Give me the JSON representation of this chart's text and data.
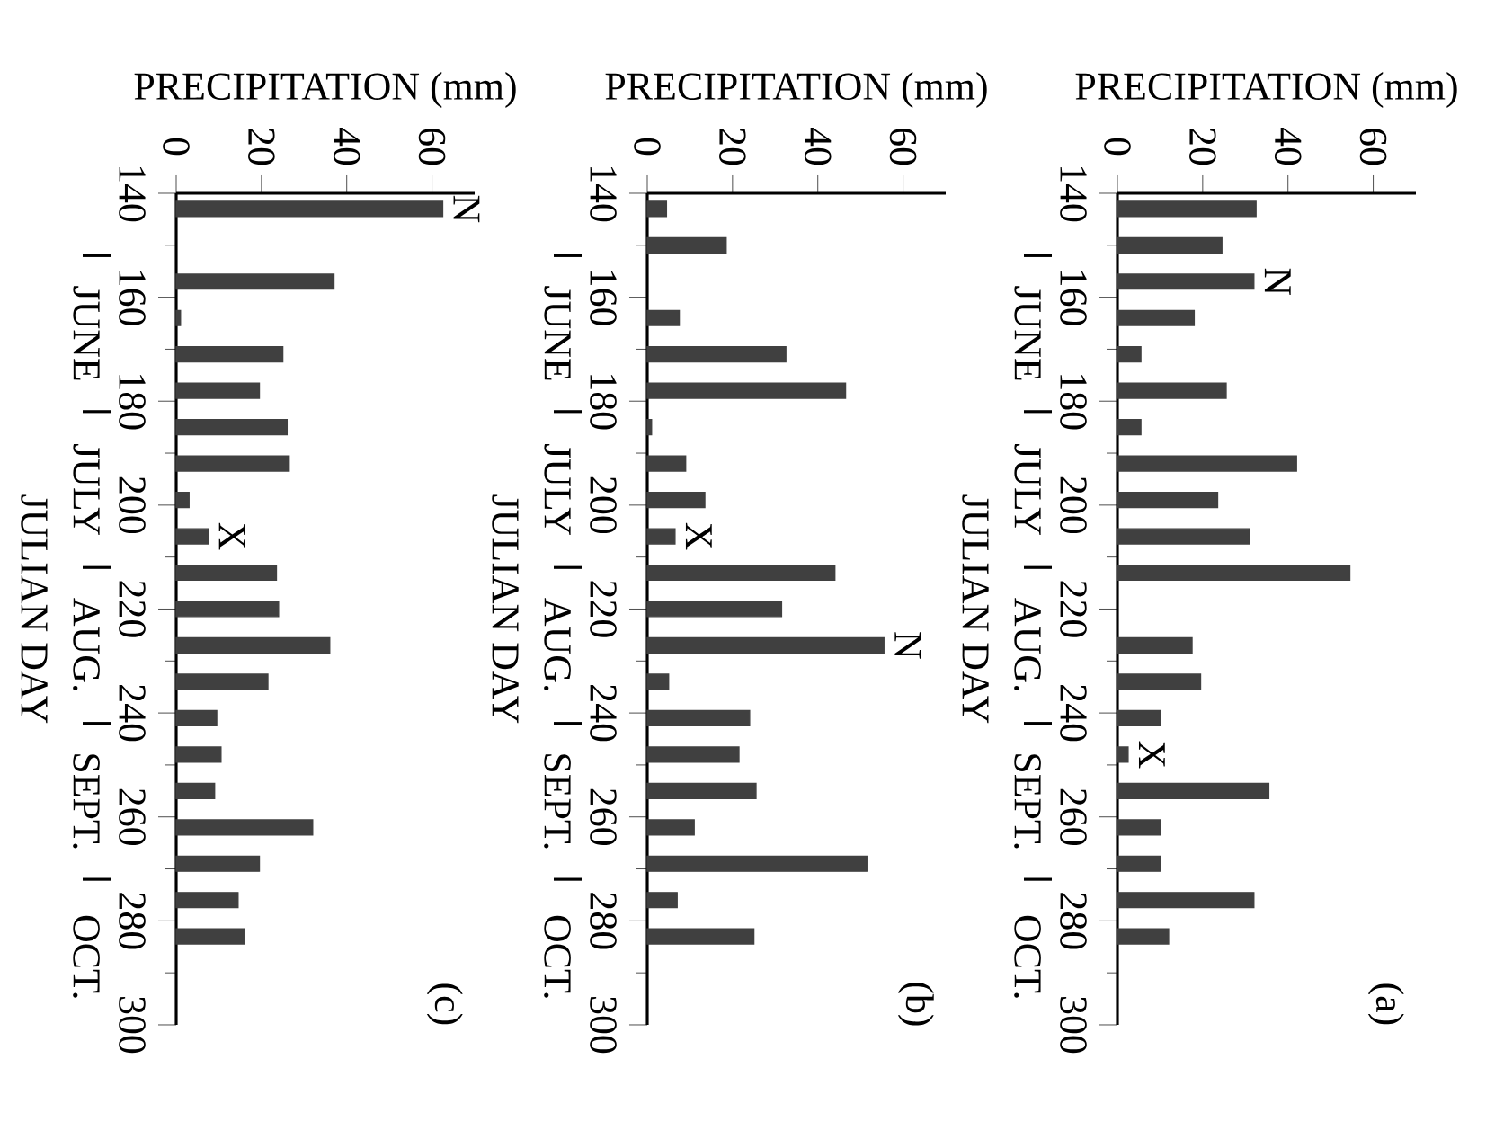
{
  "chart_data": [
    {
      "type": "bar",
      "orientation": "horizontal",
      "xlabel": "PRECIPITATION (mm)",
      "ylabel": "JULIAN DAY",
      "color": "#404040",
      "x": [
        143,
        150,
        157,
        164,
        171,
        178,
        185,
        192,
        199,
        206,
        213,
        227,
        234,
        241,
        248,
        255,
        262,
        269,
        276,
        283
      ],
      "values": [
        32.5,
        24.5,
        32,
        18,
        5.5,
        25.5,
        5.5,
        42,
        23.5,
        31,
        54.5,
        17.5,
        19.5,
        10,
        2.5,
        35.5,
        10,
        10,
        32,
        12
      ],
      "xlim": [
        0,
        70
      ],
      "ylim": [
        300,
        140
      ],
      "xticks": [
        0,
        20,
        40,
        60
      ],
      "yticks": [
        140,
        {
          "value": 150,
          "label": null
        },
        160,
        {
          "value": 170,
          "label": null
        },
        180,
        {
          "value": 190,
          "label": null
        },
        200,
        {
          "value": 210,
          "label": null
        },
        220,
        {
          "value": 230,
          "label": null
        },
        240,
        {
          "value": 250,
          "label": null
        },
        260,
        {
          "value": 270,
          "label": null
        },
        280,
        {
          "value": 290,
          "label": null
        },
        300
      ],
      "annotations": [
        {
          "text": "N",
          "x": 32,
          "y": 157
        },
        {
          "text": "X",
          "x": 2.5,
          "y": 248
        },
        "(a)",
        "JUNE",
        "JULY",
        "AUG.",
        "SEPT.",
        "OCT."
      ]
    },
    {
      "type": "bar",
      "orientation": "horizontal",
      "xlabel": "PRECIPITATION (mm)",
      "ylabel": "JULIAN DAY",
      "color": "#404040",
      "x": [
        143,
        150,
        164,
        171,
        178,
        185,
        192,
        199,
        206,
        213,
        220,
        227,
        234,
        241,
        248,
        255,
        262,
        269,
        276,
        283
      ],
      "values": [
        4.5,
        18.5,
        7.5,
        32.5,
        46.5,
        1,
        9,
        13.5,
        6.5,
        44,
        31.5,
        55.5,
        5,
        24,
        21.5,
        25.5,
        11,
        51.5,
        7,
        25
      ],
      "xlim": [
        0,
        70
      ],
      "ylim": [
        300,
        140
      ],
      "xticks": [
        0,
        20,
        40,
        60
      ],
      "yticks": [
        140,
        {
          "value": 150,
          "label": null
        },
        160,
        {
          "value": 170,
          "label": null
        },
        180,
        {
          "value": 190,
          "label": null
        },
        200,
        {
          "value": 210,
          "label": null
        },
        220,
        {
          "value": 230,
          "label": null
        },
        240,
        {
          "value": 250,
          "label": null
        },
        260,
        {
          "value": 270,
          "label": null
        },
        280,
        {
          "value": 290,
          "label": null
        },
        300
      ],
      "annotations": [
        {
          "text": "X",
          "x": 6.5,
          "y": 206
        },
        {
          "text": "N",
          "x": 55.5,
          "y": 227
        },
        "(b)",
        "JUNE",
        "JULY",
        "AUG.",
        "SEPT.",
        "OCT."
      ]
    },
    {
      "type": "bar",
      "orientation": "horizontal",
      "xlabel": "PRECIPITATION (mm)",
      "ylabel": "JULIAN DAY",
      "color": "#404040",
      "x": [
        143,
        157,
        164,
        171,
        178,
        185,
        192,
        199,
        206,
        213,
        220,
        227,
        234,
        241,
        248,
        255,
        262,
        269,
        276,
        283
      ],
      "values": [
        62.5,
        37,
        1,
        25,
        19.5,
        26,
        26.5,
        3,
        7.5,
        23.5,
        24,
        36,
        21.5,
        9.5,
        10.5,
        9,
        32,
        19.5,
        14.5,
        16
      ],
      "xlim": [
        0,
        70
      ],
      "ylim": [
        300,
        140
      ],
      "xticks": [
        0,
        20,
        40,
        60
      ],
      "yticks": [
        140,
        {
          "value": 150,
          "label": null
        },
        160,
        {
          "value": 170,
          "label": null
        },
        180,
        {
          "value": 190,
          "label": null
        },
        200,
        {
          "value": 210,
          "label": null
        },
        220,
        {
          "value": 230,
          "label": null
        },
        240,
        {
          "value": 250,
          "label": null
        },
        260,
        {
          "value": 270,
          "label": null
        },
        280,
        {
          "value": 290,
          "label": null
        },
        300
      ],
      "annotations": [
        {
          "text": "N",
          "x": 62.5,
          "y": 143
        },
        {
          "text": "X",
          "x": 7.5,
          "y": 206
        },
        "(c)",
        "JUNE",
        "JULY",
        "AUG.",
        "SEPT.",
        "OCT."
      ]
    }
  ]
}
